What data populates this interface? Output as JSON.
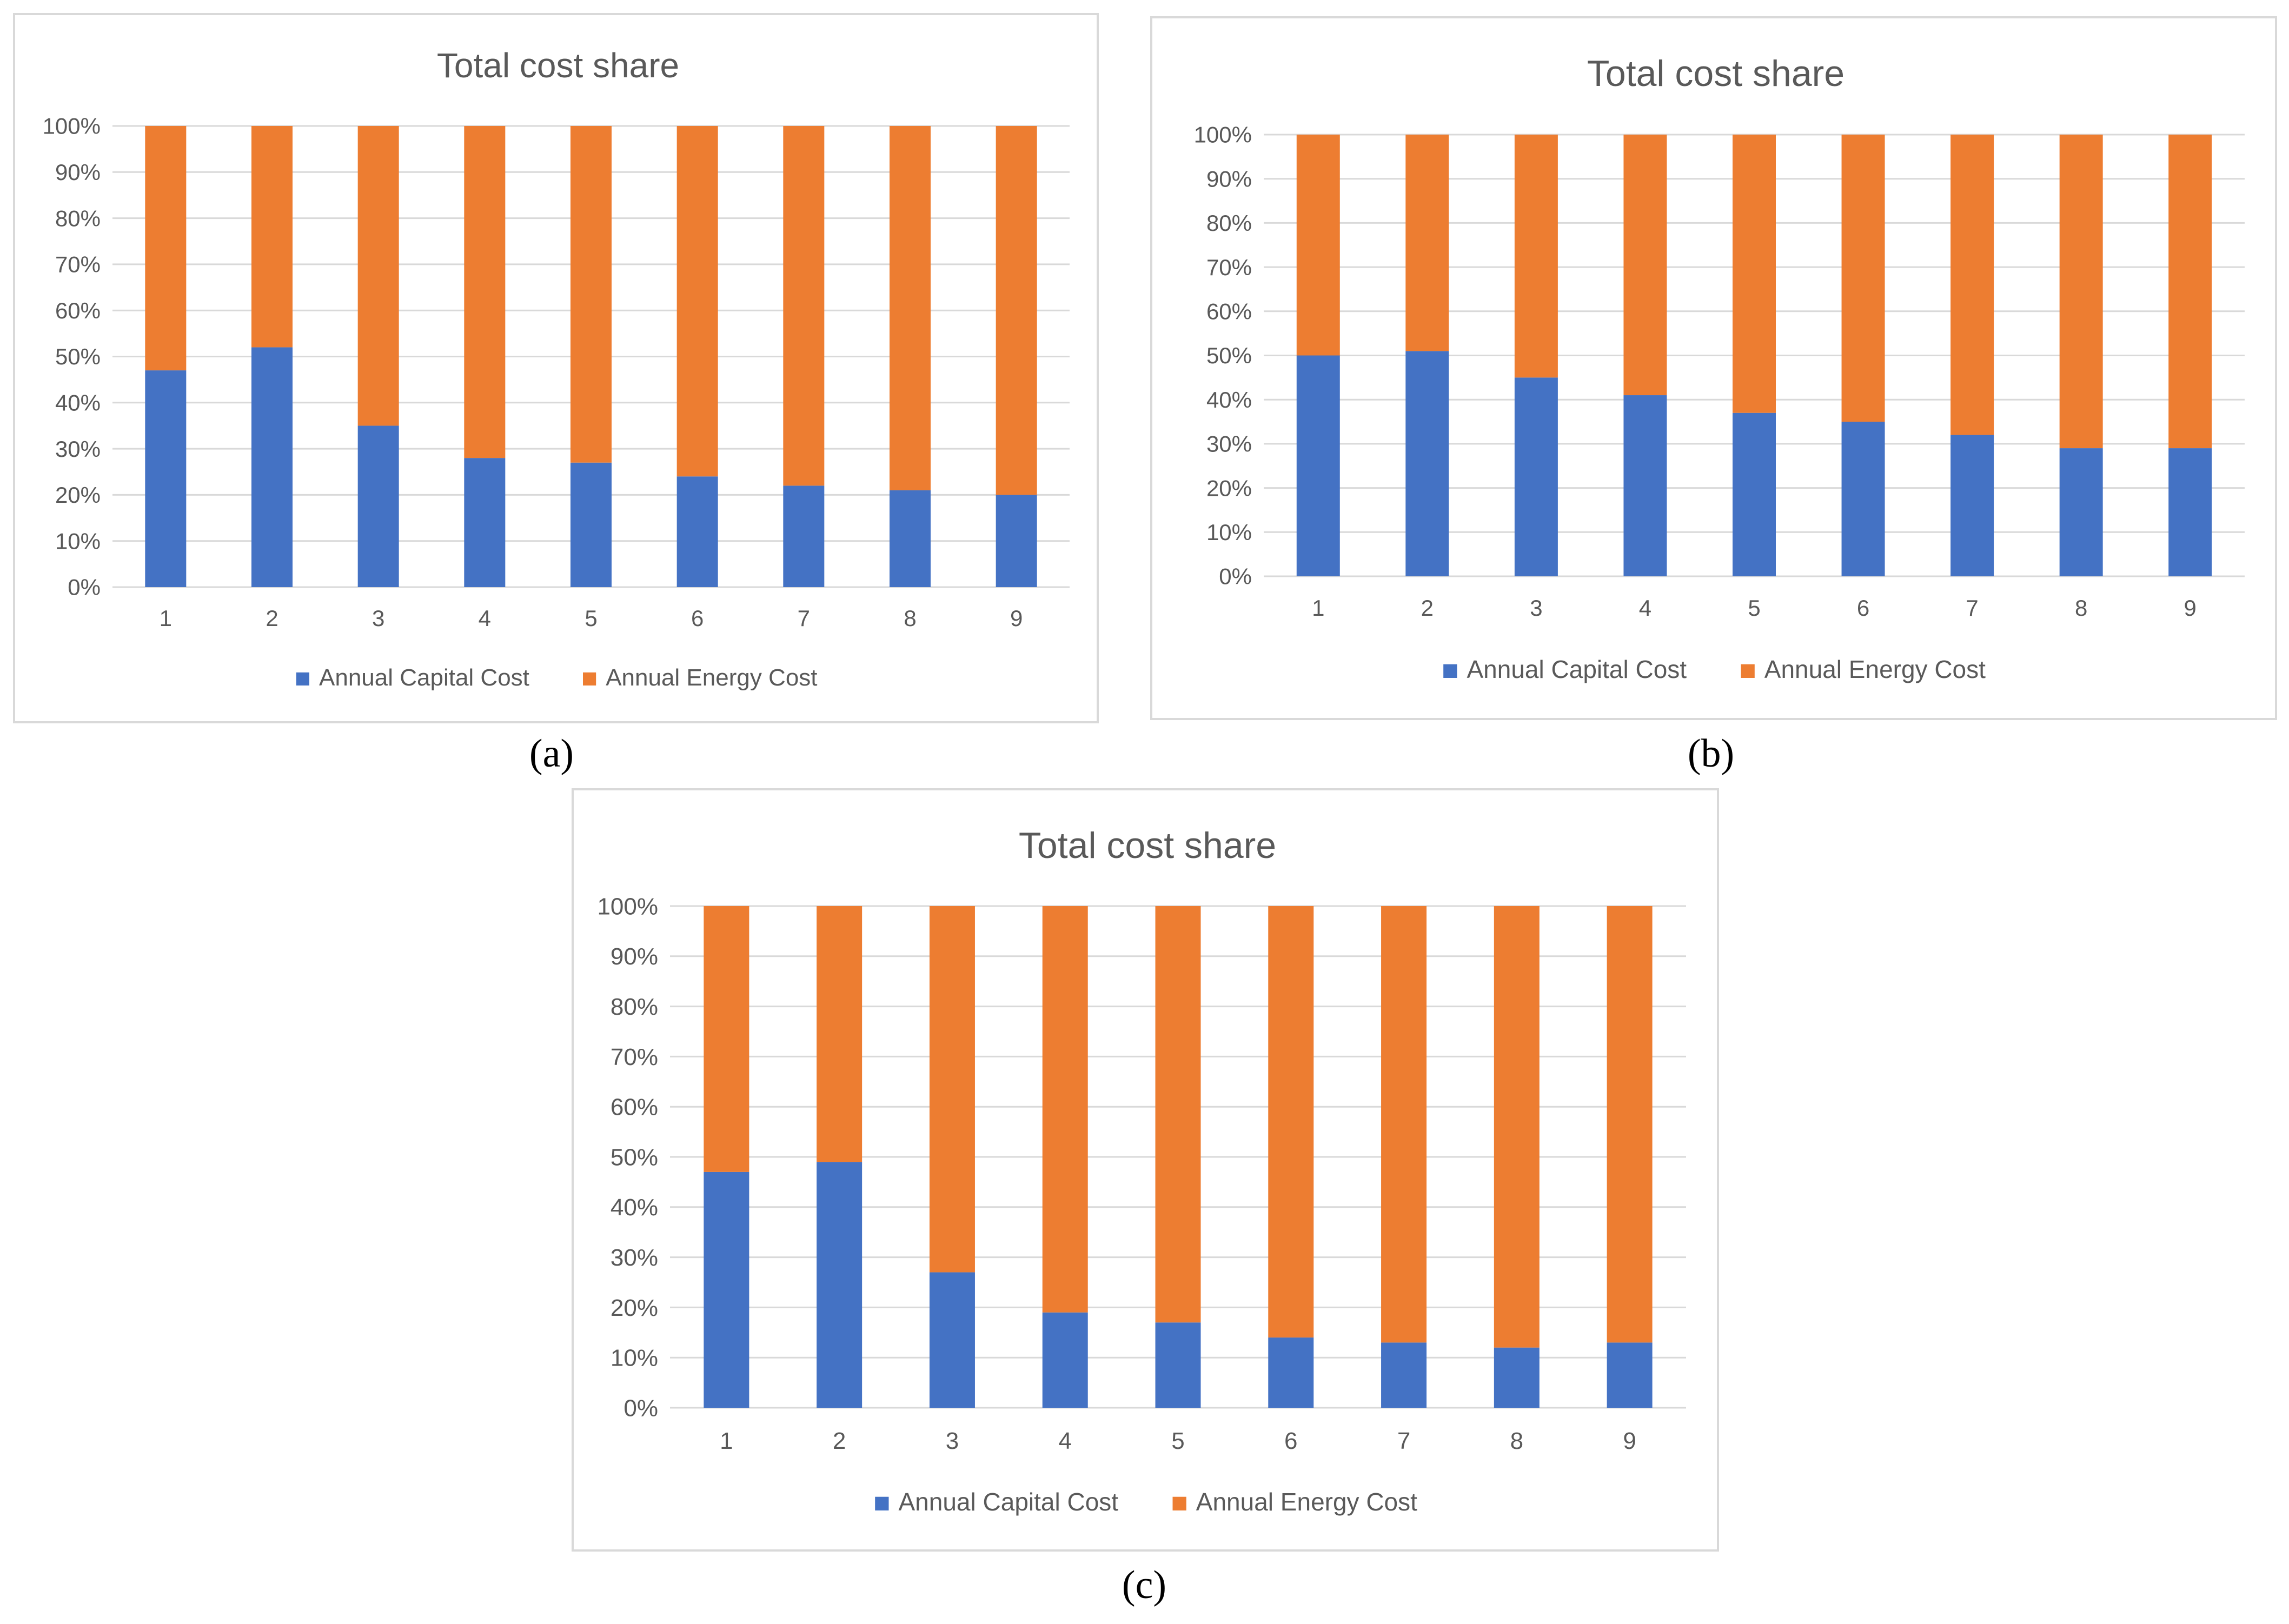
{
  "colors": {
    "capital": "#4472c4",
    "energy": "#ed7d31",
    "grid": "#d9d9d9",
    "text": "#595959"
  },
  "chart_data": [
    {
      "panel": "a",
      "type": "bar",
      "stacked": "percent",
      "title": "Total cost share",
      "categories": [
        "1",
        "2",
        "3",
        "4",
        "5",
        "6",
        "7",
        "8",
        "9"
      ],
      "yticks": [
        "0%",
        "10%",
        "20%",
        "30%",
        "40%",
        "50%",
        "60%",
        "70%",
        "80%",
        "90%",
        "100%"
      ],
      "ylim": [
        0,
        100
      ],
      "series": [
        {
          "name": "Annual Capital Cost",
          "values": [
            47,
            52,
            35,
            28,
            27,
            24,
            22,
            21,
            20
          ]
        },
        {
          "name": "Annual Energy Cost",
          "values": [
            53,
            48,
            65,
            72,
            73,
            76,
            78,
            79,
            80
          ]
        }
      ],
      "legend": "bottom"
    },
    {
      "panel": "b",
      "type": "bar",
      "stacked": "percent",
      "title": "Total cost share",
      "categories": [
        "1",
        "2",
        "3",
        "4",
        "5",
        "6",
        "7",
        "8",
        "9"
      ],
      "yticks": [
        "0%",
        "10%",
        "20%",
        "30%",
        "40%",
        "50%",
        "60%",
        "70%",
        "80%",
        "90%",
        "100%"
      ],
      "ylim": [
        0,
        100
      ],
      "series": [
        {
          "name": "Annual Capital Cost",
          "values": [
            50,
            51,
            45,
            41,
            37,
            35,
            32,
            29,
            29
          ]
        },
        {
          "name": "Annual Energy Cost",
          "values": [
            50,
            49,
            55,
            59,
            63,
            65,
            68,
            71,
            71
          ]
        }
      ],
      "legend": "bottom"
    },
    {
      "panel": "c",
      "type": "bar",
      "stacked": "percent",
      "title": "Total cost share",
      "categories": [
        "1",
        "2",
        "3",
        "4",
        "5",
        "6",
        "7",
        "8",
        "9"
      ],
      "yticks": [
        "0%",
        "10%",
        "20%",
        "30%",
        "40%",
        "50%",
        "60%",
        "70%",
        "80%",
        "90%",
        "100%"
      ],
      "ylim": [
        0,
        100
      ],
      "series": [
        {
          "name": "Annual Capital Cost",
          "values": [
            47,
            49,
            27,
            19,
            17,
            14,
            13,
            12,
            13
          ]
        },
        {
          "name": "Annual Energy Cost",
          "values": [
            53,
            51,
            73,
            81,
            83,
            86,
            87,
            88,
            87
          ]
        }
      ],
      "legend": "bottom"
    }
  ],
  "captions": {
    "a": "(a)",
    "b": "(b)",
    "c": "(c)"
  }
}
